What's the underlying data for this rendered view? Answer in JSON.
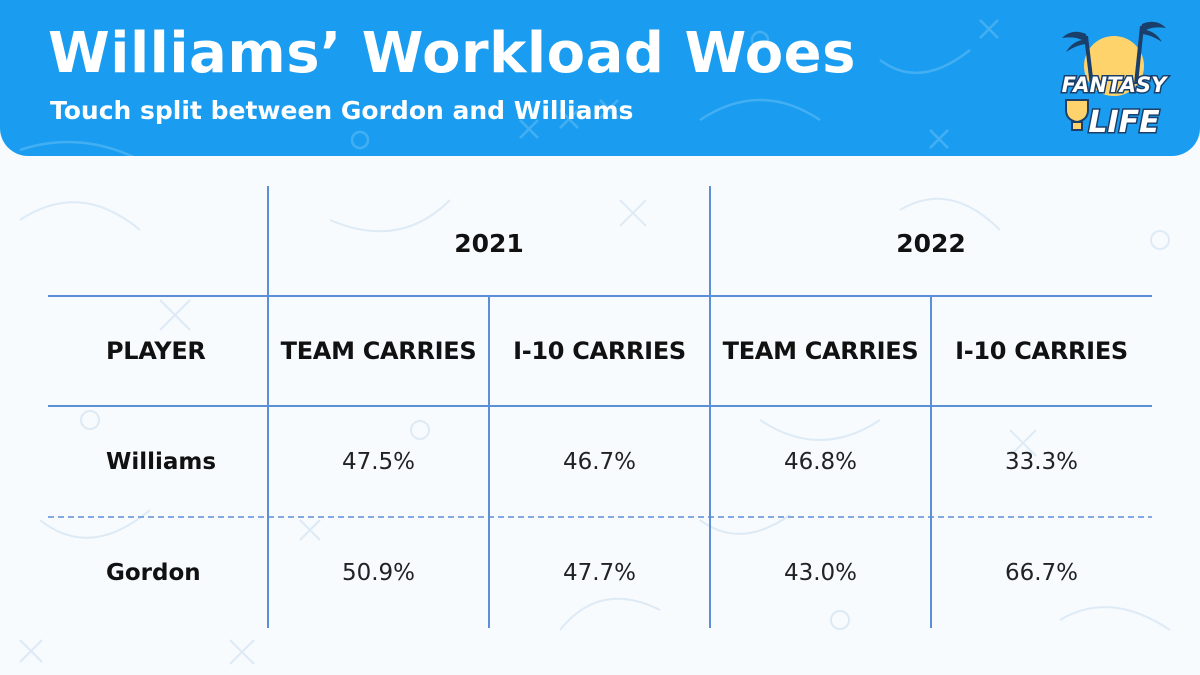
{
  "header": {
    "title": "Williams’ Workload Woes",
    "subtitle": "Touch split between Gordon and Williams"
  },
  "logo": {
    "icon": "fantasy-life-logo",
    "line1": "FANTASY",
    "line2": "LIFE"
  },
  "colors": {
    "header_bg": "#1a9df0",
    "grid_line": "#5b8fd6",
    "text": "#111111"
  },
  "chart_data": {
    "type": "table",
    "title": "Williams’ Workload Woes",
    "subtitle": "Touch split between Gordon and Williams",
    "years": [
      "2021",
      "2022"
    ],
    "columns": [
      "PLAYER",
      "TEAM CARRIES",
      "I-10 CARRIES",
      "TEAM CARRIES",
      "I-10 CARRIES"
    ],
    "rows": [
      {
        "player": "Williams",
        "values": [
          "47.5%",
          "46.7%",
          "46.8%",
          "33.3%"
        ]
      },
      {
        "player": "Gordon",
        "values": [
          "50.9%",
          "47.7%",
          "43.0%",
          "66.7%"
        ]
      }
    ]
  }
}
